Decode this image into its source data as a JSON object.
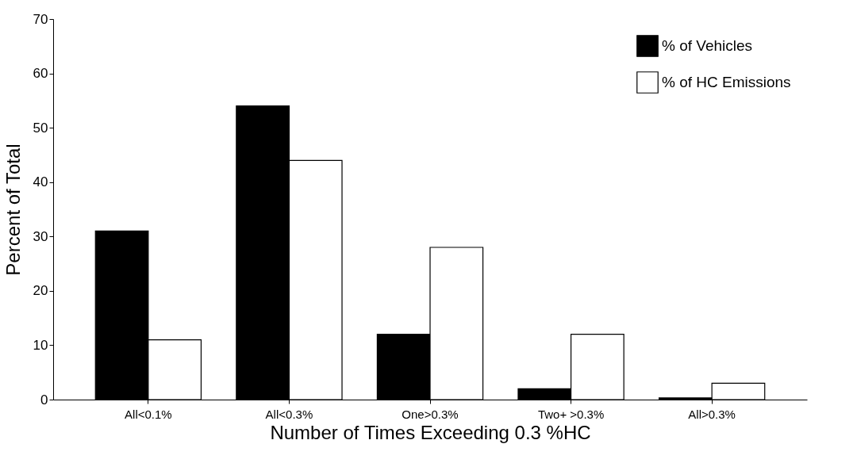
{
  "chart_data": {
    "type": "bar",
    "xlabel": "Number of Times Exceeding 0.3 %HC",
    "ylabel": "Percent of Total",
    "categories": [
      "All<0.1%",
      "All<0.3%",
      "One>0.3%",
      "Two+ >0.3%",
      "All>0.3%"
    ],
    "series": [
      {
        "name": "% of Vehicles",
        "color": "#000000",
        "values": [
          31,
          54,
          12,
          2,
          0.3
        ]
      },
      {
        "name": "% of HC Emissions",
        "color": "#ffffff",
        "values": [
          11,
          44,
          28,
          12,
          3
        ]
      }
    ],
    "ylim": [
      0,
      70
    ],
    "yticks": [
      0,
      10,
      20,
      30,
      40,
      50,
      60,
      70
    ],
    "grid": false,
    "legend": "top right"
  }
}
